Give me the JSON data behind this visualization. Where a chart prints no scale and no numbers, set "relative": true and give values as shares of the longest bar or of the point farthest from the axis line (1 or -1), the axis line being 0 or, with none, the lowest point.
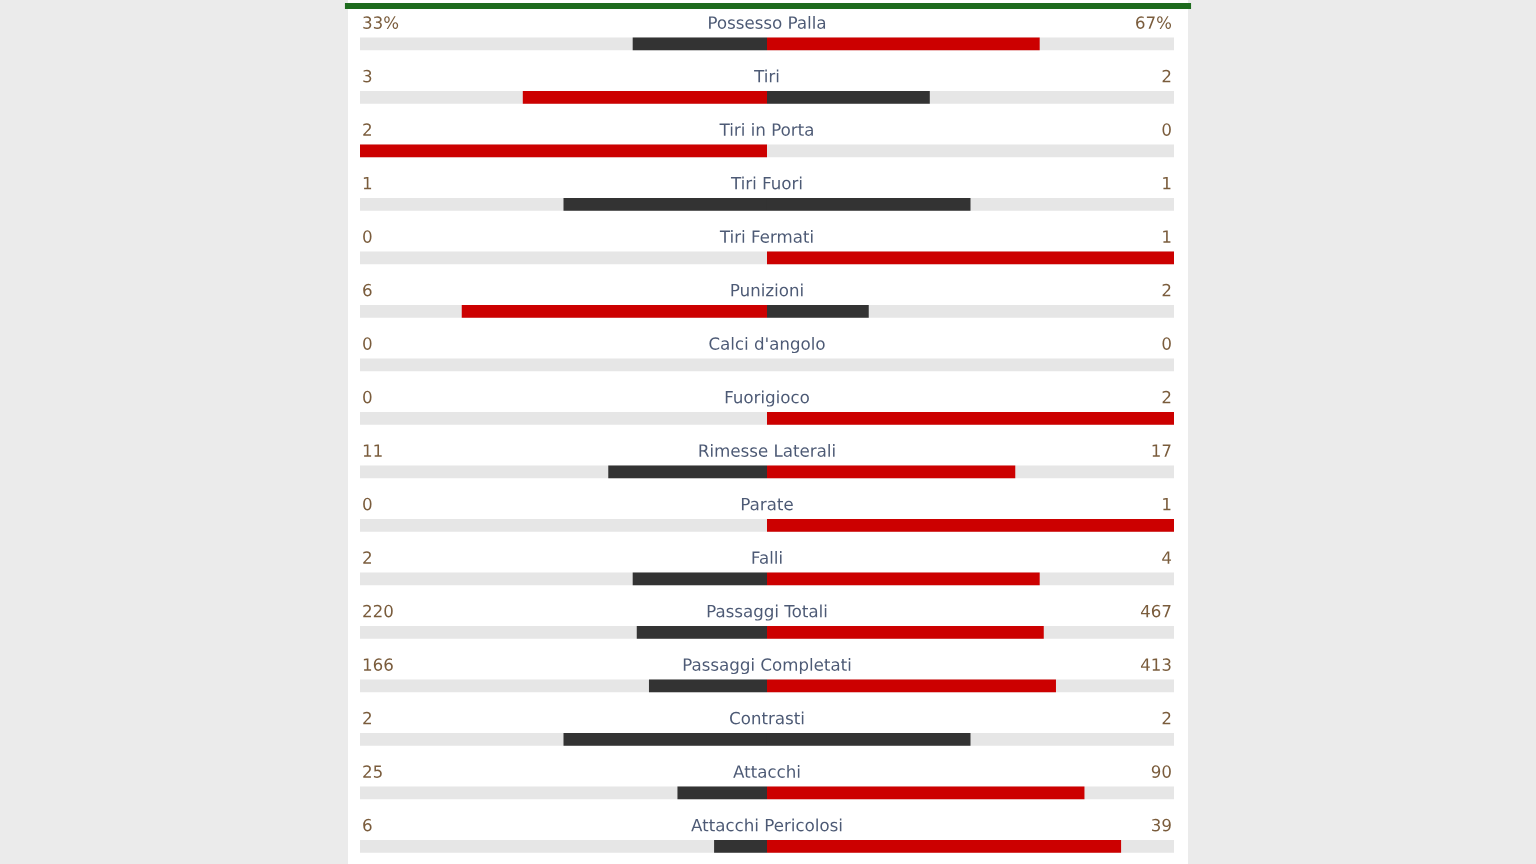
{
  "chart_data": {
    "type": "bar",
    "orientation": "horizontal",
    "relative": true,
    "stacked": true,
    "categories": [
      "Possesso Palla",
      "Tiri",
      "Tiri in Porta",
      "Tiri Fuori",
      "Tiri Fermati",
      "Punizioni",
      "Calci d'angolo",
      "Fuorigioco",
      "Rimesse Laterali",
      "Parate",
      "Falli",
      "Passaggi Totali",
      "Passaggi Completati",
      "Contrasti",
      "Attacchi",
      "Attacchi Pericolosi"
    ],
    "series": [
      {
        "values": [
          -0.33,
          -0.6,
          -1,
          -0.5,
          0,
          -0.75,
          0,
          0,
          -0.39,
          0,
          -0.33,
          -0.32,
          -0.29,
          -0.5,
          -0.22,
          -0.13
        ],
        "colors": [
          "#333333",
          "#cc0000",
          "#cc0000",
          "#333333",
          "#333333",
          "#cc0000",
          "#333333",
          "#333333",
          "#333333",
          "#333333",
          "#333333",
          "#333333",
          "#333333",
          "#333333",
          "#333333",
          "#333333"
        ]
      },
      {
        "values": [
          0.67,
          0.4,
          0,
          0.5,
          1,
          0.25,
          0,
          1,
          0.61,
          1,
          0.67,
          0.68,
          0.71,
          0.5,
          0.78,
          0.87
        ],
        "colors": [
          "#cc0000",
          "#333333",
          "#333333",
          "#333333",
          "#cc0000",
          "#333333",
          "#333333",
          "#cc0000",
          "#cc0000",
          "#cc0000",
          "#cc0000",
          "#cc0000",
          "#cc0000",
          "#333333",
          "#cc0000",
          "#cc0000"
        ]
      }
    ],
    "annotations": [
      "33%",
      "67%",
      "3",
      "2",
      "2",
      "0",
      "1",
      "1",
      "0",
      "1",
      "6",
      "2",
      "0",
      "0",
      "0",
      "2",
      "11",
      "17",
      "0",
      "1",
      "2",
      "4",
      "220",
      "467",
      "166",
      "413",
      "2",
      "2",
      "25",
      "90",
      "6",
      "39"
    ]
  }
}
